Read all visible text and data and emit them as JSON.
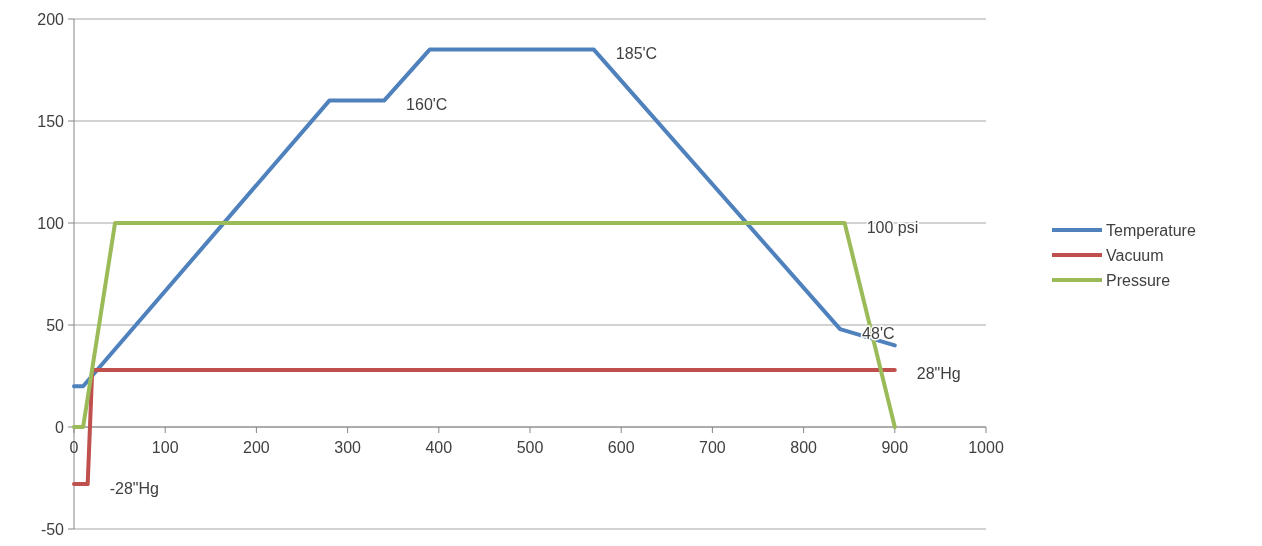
{
  "chart_data": {
    "type": "line",
    "xlim": [
      0,
      1000
    ],
    "xticks": [
      0,
      100,
      200,
      300,
      400,
      500,
      600,
      700,
      800,
      900,
      1000
    ],
    "ylim": [
      -50,
      200
    ],
    "yticks": [
      -50,
      0,
      50,
      100,
      150,
      200
    ],
    "grid": "y",
    "legend": "right",
    "marker": "none",
    "line_style": "solid",
    "series": [
      {
        "name": "Temperature",
        "color": "#4f81bd",
        "x": [
          0,
          10,
          280,
          340,
          390,
          570,
          840,
          900
        ],
        "values": [
          20,
          20,
          160,
          160,
          185,
          185,
          48,
          40
        ]
      },
      {
        "name": "Vacuum",
        "color": "#c0504d",
        "x": [
          0,
          15,
          20,
          900
        ],
        "values": [
          -28,
          -28,
          28,
          28
        ]
      },
      {
        "name": "Pressure",
        "color": "#9bbb59",
        "x": [
          0,
          10,
          45,
          845,
          900
        ],
        "values": [
          0,
          0,
          100,
          100,
          0
        ]
      }
    ],
    "annotations": [
      {
        "text": "185'C",
        "x": 570,
        "y": 185
      },
      {
        "text": "160'C",
        "x": 340,
        "y": 160
      },
      {
        "text": "100 psi",
        "x": 845,
        "y": 100
      },
      {
        "text": "48'C",
        "x": 840,
        "y": 48
      },
      {
        "text": "28\"Hg",
        "x": 900,
        "y": 28
      },
      {
        "text": "-28\"Hg",
        "x": 15,
        "y": -28
      }
    ]
  }
}
